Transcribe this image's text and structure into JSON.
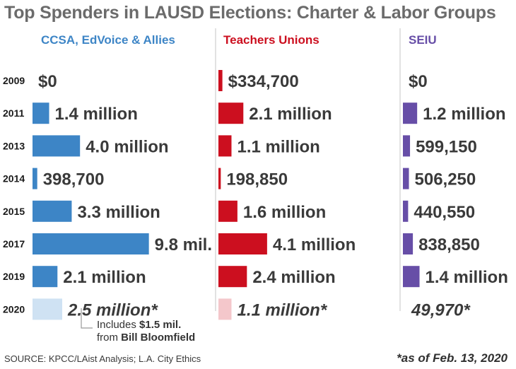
{
  "title": "Top Spenders in LAUSD Elections: Charter & Labor Groups",
  "source": "SOURCE: KPCC/LAist Analysis; L.A. City Ethics",
  "as_of_note": "*as of Feb. 13, 2020",
  "annotation": {
    "line1_prefix": "Includes ",
    "line1_bold": "$1.5 mil.",
    "line2_prefix": "from ",
    "line2_bold": "Bill Bloomfield"
  },
  "colors": {
    "ccsa": "#3d85c6",
    "ccsa_partial": "#cfe2f3",
    "teachers": "#cc0f1f",
    "teachers_partial": "#f4c7cb",
    "seiu": "#674ea7",
    "title": "#6b6b6b",
    "value_text": "#3a3a3a"
  },
  "chart_data": {
    "type": "bar",
    "orientation": "horizontal",
    "categories": [
      "2009",
      "2011",
      "2013",
      "2014",
      "2015",
      "2017",
      "2019",
      "2020"
    ],
    "series": [
      {
        "name": "CCSA, EdVoice & Allies",
        "values": [
          0,
          1400000,
          4000000,
          398700,
          3300000,
          9800000,
          2100000,
          2500000
        ],
        "labels": [
          "$0",
          "1.4 million",
          "4.0 million",
          "398,700",
          "3.3 million",
          "9.8 mil.",
          "2.1 million",
          "2.5 million*"
        ]
      },
      {
        "name": "Teachers Unions",
        "values": [
          334700,
          2100000,
          1100000,
          198850,
          1600000,
          4100000,
          2400000,
          1100000
        ],
        "labels": [
          "$334,700",
          "2.1 million",
          "1.1 million",
          "198,850",
          "1.6 million",
          "4.1 million",
          "2.4 million",
          "1.1 million*"
        ]
      },
      {
        "name": "SEIU",
        "values": [
          0,
          1200000,
          599150,
          506250,
          440550,
          838850,
          1400000,
          49970
        ],
        "labels": [
          "$0",
          "1.2 million",
          "599,150",
          "506,250",
          "440,550",
          "838,850",
          "1.4 million",
          "49,970*"
        ]
      }
    ],
    "partial_category": "2020"
  }
}
